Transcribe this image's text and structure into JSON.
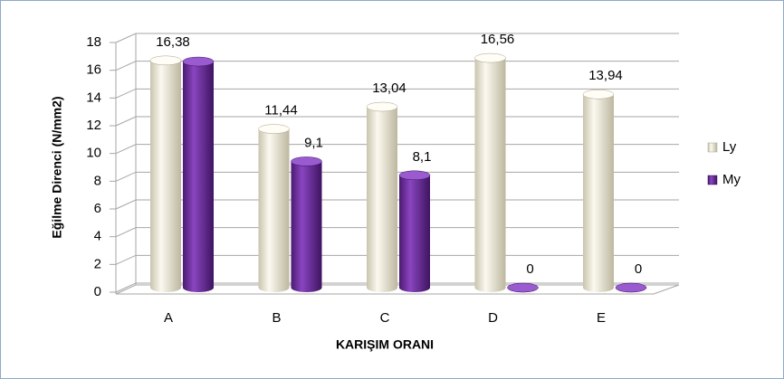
{
  "chart_data": {
    "type": "bar3d",
    "ylabel": "Eğilme Direnci (N/mm2)",
    "xlabel": "KARIŞIM ORANI",
    "categories": [
      "A",
      "B",
      "C",
      "D",
      "E"
    ],
    "series": [
      {
        "name": "Ly",
        "color": "#f2eedd",
        "values": [
          16.38,
          11.44,
          13.04,
          16.56,
          13.94
        ],
        "value_labels": [
          "16,38",
          "11,44",
          "13,04",
          "16,56",
          "13,94"
        ]
      },
      {
        "name": "My",
        "color": "#7030a0",
        "values": [
          16.3,
          9.1,
          8.1,
          0,
          0
        ],
        "value_labels": [
          null,
          "9,1",
          "8,1",
          "0",
          "0"
        ]
      }
    ],
    "ylim": [
      0,
      18
    ],
    "yticks": [
      0,
      2,
      4,
      6,
      8,
      10,
      12,
      14,
      16,
      18
    ],
    "grid": true,
    "legend": "right"
  }
}
